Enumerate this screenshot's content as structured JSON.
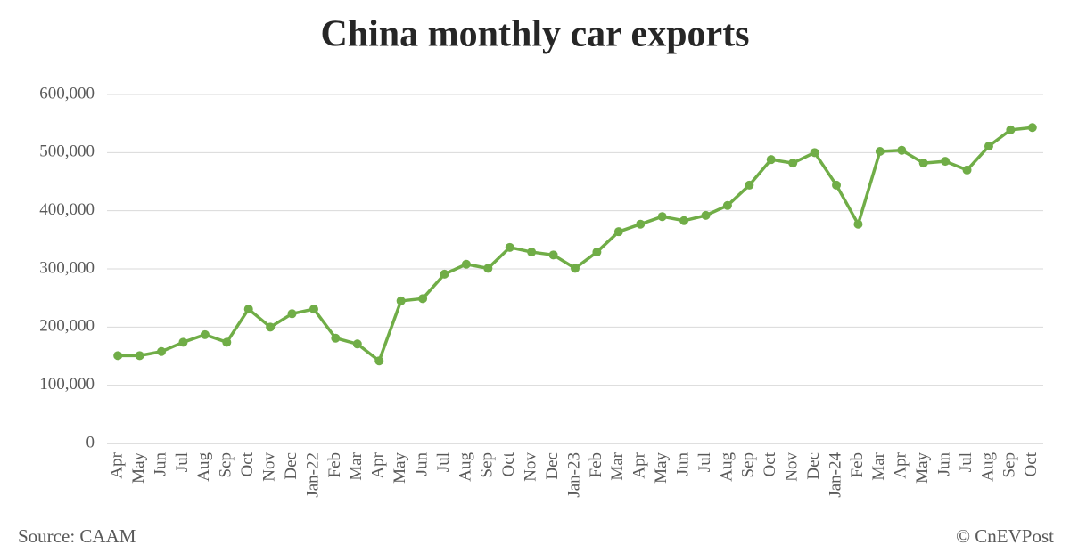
{
  "chart_data": {
    "type": "line",
    "title": "China monthly car exports",
    "categories": [
      "Apr",
      "May",
      "Jun",
      "Jul",
      "Aug",
      "Sep",
      "Oct",
      "Nov",
      "Dec",
      "Jan-22",
      "Feb",
      "Mar",
      "Apr",
      "May",
      "Jun",
      "Jul",
      "Aug",
      "Sep",
      "Oct",
      "Nov",
      "Dec",
      "Jan-23",
      "Feb",
      "Mar",
      "Apr",
      "May",
      "Jun",
      "Jul",
      "Aug",
      "Sep",
      "Oct",
      "Nov",
      "Dec",
      "Jan-24",
      "Feb",
      "Mar",
      "Apr",
      "May",
      "Jun",
      "Jul",
      "Aug",
      "Sep",
      "Oct"
    ],
    "series": [
      {
        "name": "Car exports",
        "color": "#70ad47",
        "values": [
          151000,
          151000,
          158000,
          174000,
          187000,
          174000,
          231000,
          200000,
          223000,
          231000,
          181000,
          171000,
          142000,
          245000,
          249000,
          291000,
          308000,
          301000,
          337000,
          329000,
          324000,
          301000,
          329000,
          364000,
          377000,
          390000,
          383000,
          392000,
          409000,
          444000,
          488000,
          482000,
          500000,
          444000,
          377000,
          502000,
          504000,
          482000,
          485000,
          470000,
          511000,
          539000,
          543000
        ]
      }
    ],
    "ylim": [
      0,
      600000
    ],
    "yticks": [
      0,
      {
        "value": 100000,
        "label": "100,000"
      },
      {
        "value": 200000,
        "label": "200,000"
      },
      {
        "value": 300000,
        "label": "300,000"
      },
      {
        "value": 400000,
        "label": "400,000"
      },
      {
        "value": 500000,
        "label": "500,000"
      },
      {
        "value": 600000,
        "label": "600,000"
      }
    ],
    "grid": true,
    "source": "Source: CAAM",
    "credit": "© CnEVPost"
  }
}
